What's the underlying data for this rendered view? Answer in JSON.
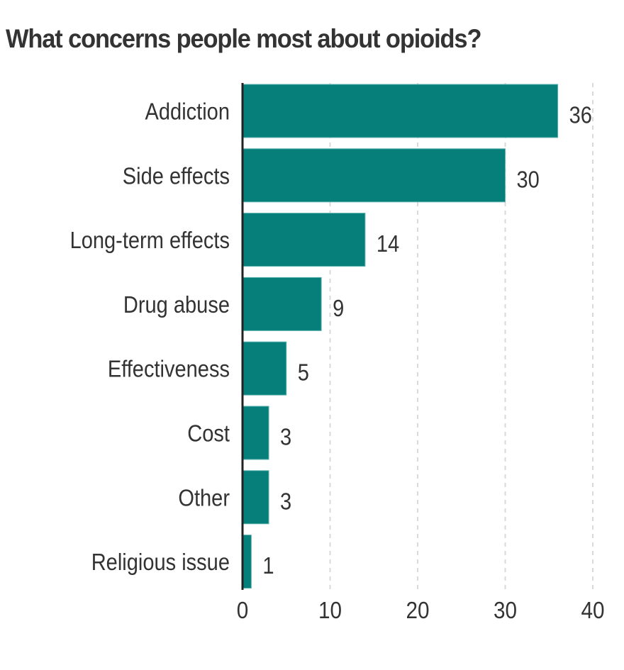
{
  "chart_data": {
    "type": "bar",
    "orientation": "horizontal",
    "title": "What concerns people most about opioids?",
    "categories": [
      "Addiction",
      "Side effects",
      "Long-term effects",
      "Drug abuse",
      "Effectiveness",
      "Cost",
      "Other",
      "Religious issue"
    ],
    "values": [
      36,
      30,
      14,
      9,
      5,
      3,
      3,
      1
    ],
    "data_labels": [
      "36",
      "30",
      "14",
      "9",
      "5",
      "3",
      "3",
      "1"
    ],
    "xlabel": "",
    "ylabel": "",
    "xlim": [
      0,
      40
    ],
    "xticks": [
      0,
      10,
      20,
      30,
      40
    ],
    "xtick_labels": [
      "0",
      "10",
      "20",
      "30",
      "40"
    ],
    "grid": "vertical dashed",
    "legend": "none",
    "colors": {
      "bar": "#067f7b",
      "bar_edge": "#5fb3b0",
      "text": "#333333",
      "axis": "#222222",
      "grid": "#d9d9d9"
    }
  }
}
